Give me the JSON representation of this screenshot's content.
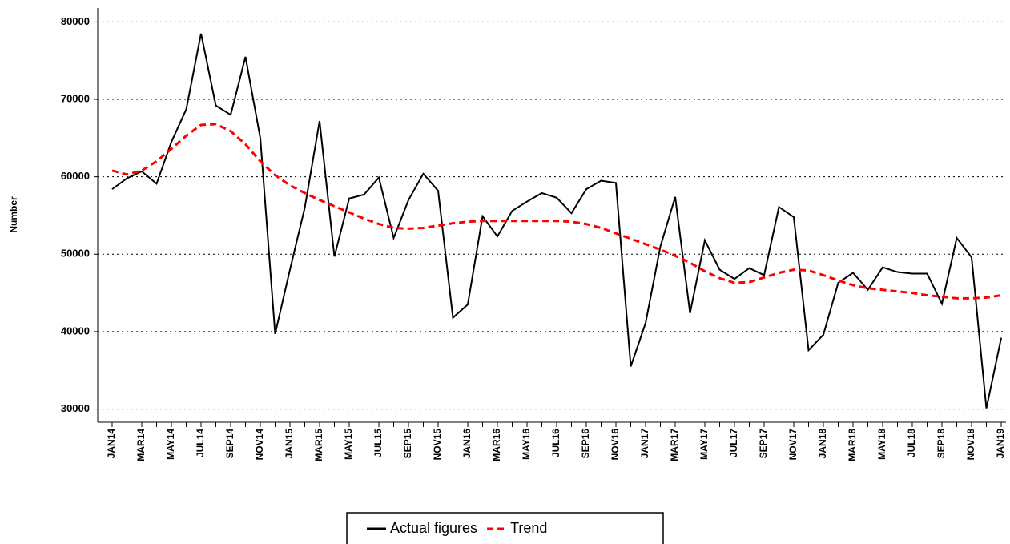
{
  "chart_data": {
    "type": "line",
    "y_label": "Number",
    "categories": [
      "JAN14",
      null,
      "MAR14",
      null,
      "MAY14",
      null,
      "JUL14",
      null,
      "SEP14",
      null,
      "NOV14",
      null,
      "JAN15",
      null,
      "MAR15",
      null,
      "MAY15",
      null,
      "JUL15",
      null,
      "SEP15",
      null,
      "NOV15",
      null,
      "JAN16",
      null,
      "MAR16",
      null,
      "MAY16",
      null,
      "JUL16",
      null,
      "SEP16",
      null,
      "NOV16",
      null,
      "JAN17",
      null,
      "MAR17",
      null,
      "MAY17",
      null,
      "JUL17",
      null,
      "SEP17",
      null,
      "NOV17",
      null,
      "JAN18",
      null,
      "MAR18",
      null,
      "MAY18",
      null,
      "JUL18",
      null,
      "SEP18",
      null,
      "NOV18",
      null,
      "JAN19"
    ],
    "series": [
      {
        "name": "Actual figures",
        "color": "#000000",
        "style": "solid",
        "values": [
          58400,
          59800,
          60700,
          59100,
          64500,
          68700,
          78500,
          69200,
          68000,
          75500,
          65000,
          39700,
          48000,
          56000,
          67200,
          49700,
          57200,
          57700,
          59900,
          52100,
          57000,
          60400,
          58200,
          41800,
          43500,
          54900,
          52300,
          55600,
          56800,
          57900,
          57300,
          55300,
          58400,
          59500,
          59200,
          35500,
          41100,
          51000,
          57400,
          42400,
          51800,
          48000,
          46800,
          48200,
          47300,
          56100,
          54800,
          37600,
          39600,
          46300,
          47600,
          45400,
          48300,
          47700,
          47500,
          47500,
          43600,
          52100,
          49600,
          30100,
          39200
        ]
      },
      {
        "name": "Trend",
        "color": "#ff0000",
        "style": "dashed",
        "values": [
          60800,
          60300,
          60800,
          62000,
          63600,
          65300,
          66700,
          66800,
          65900,
          64200,
          62000,
          60200,
          58900,
          57900,
          57000,
          56200,
          55400,
          54600,
          53900,
          53400,
          53300,
          53400,
          53700,
          54000,
          54200,
          54300,
          54300,
          54300,
          54300,
          54300,
          54300,
          54200,
          53900,
          53400,
          52700,
          52000,
          51300,
          50600,
          49800,
          48900,
          47800,
          46900,
          46300,
          46400,
          47000,
          47600,
          48000,
          47900,
          47300,
          46600,
          46000,
          45600,
          45400,
          45200,
          45000,
          44700,
          44500,
          44300,
          44300,
          44400,
          44700
        ]
      }
    ],
    "ylim": [
      28300,
      81800
    ],
    "yticks": [
      30000,
      40000,
      50000,
      60000,
      70000,
      80000
    ],
    "grid": true,
    "legend": "bottom"
  }
}
